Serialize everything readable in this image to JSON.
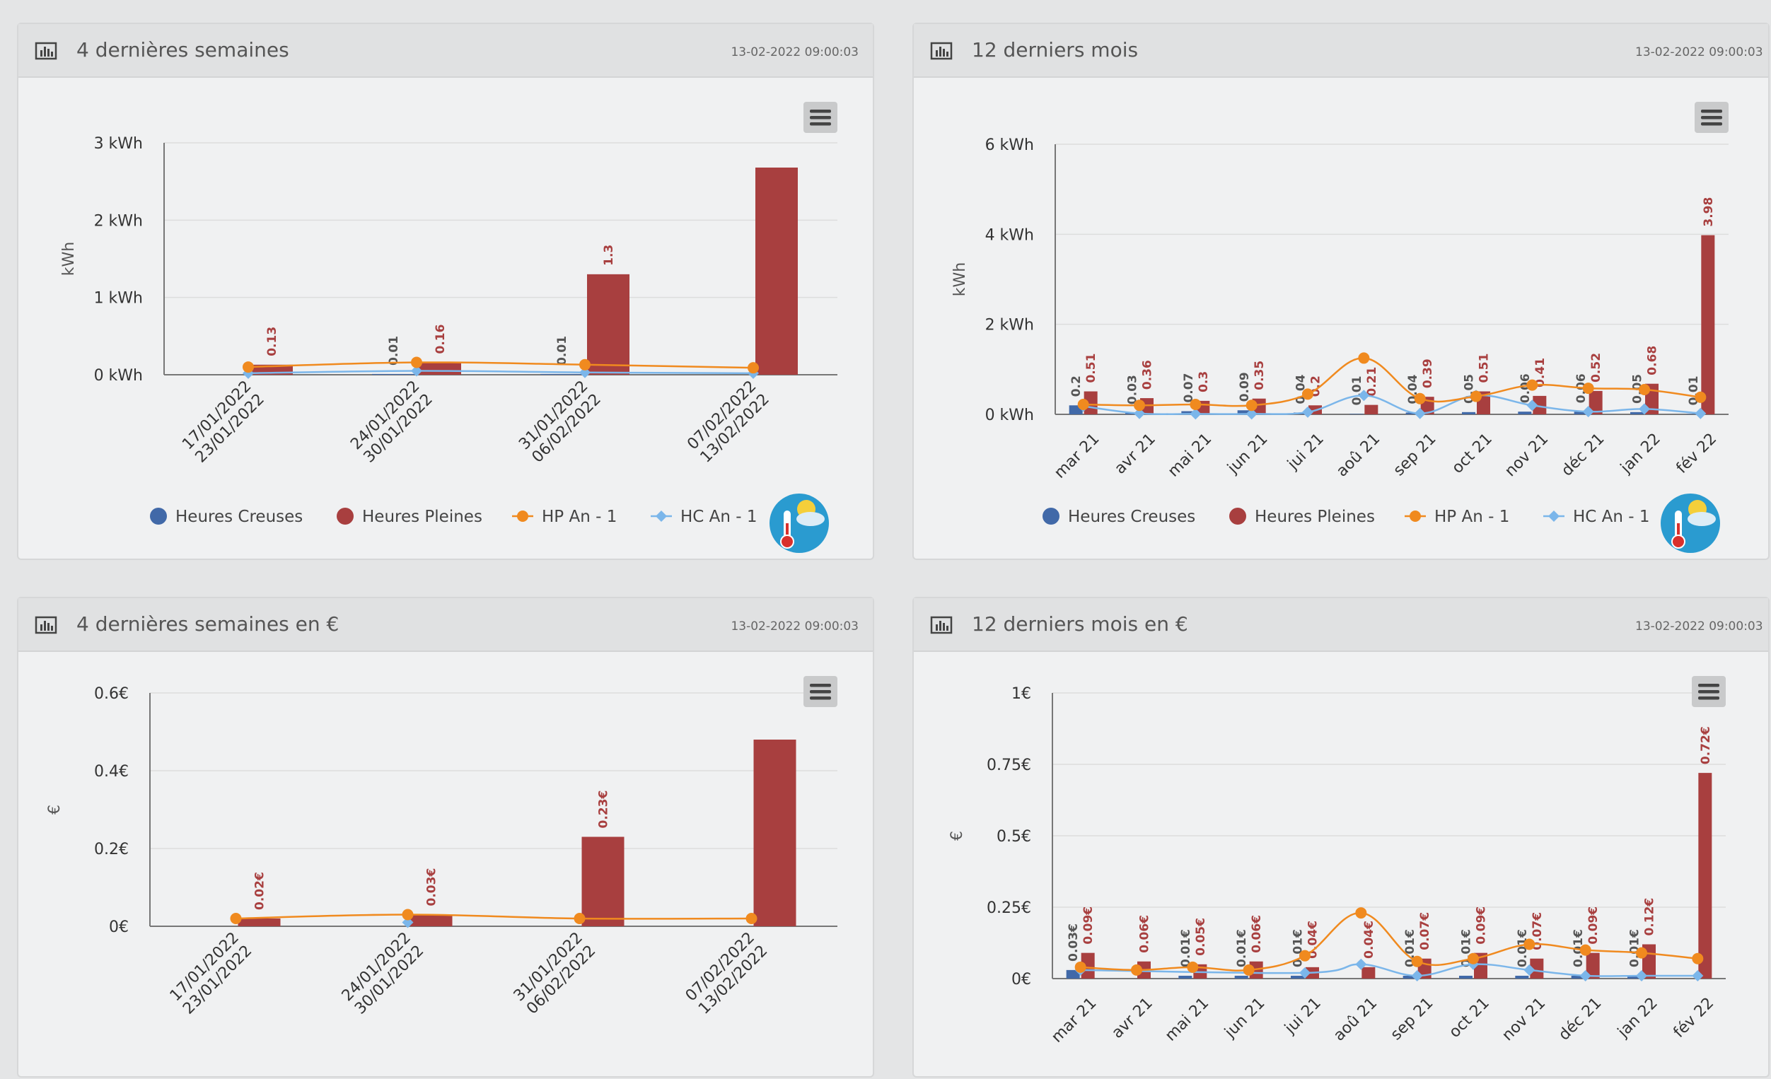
{
  "colors": {
    "hc": "#4169a8",
    "hp": "#a83f3f",
    "hp_prev": "#f08a1f",
    "hc_prev": "#7bb6ea",
    "grid": "#dddddd",
    "axis": "#555555",
    "label_gray": "#555555"
  },
  "panels": [
    {
      "title": "4 dernières semaines",
      "date": "13-02-2022 09:00:03",
      "icon": "bar-chart-icon",
      "menu_icon": "hamburger-menu-icon",
      "weather_icon": "weather-thermometer-icon",
      "chart_data": {
        "type": "bar",
        "ylabel": "kWh",
        "ylim": [
          0,
          3
        ],
        "yticks": [
          0,
          1,
          2,
          3
        ],
        "ytick_labels": [
          "0 kWh",
          "1 kWh",
          "2 kWh",
          "3 kWh"
        ],
        "categories": [
          "17/01/2022\n23/01/2022",
          "24/01/2022\n30/01/2022",
          "31/01/2022\n06/02/2022",
          "07/02/2022\n13/02/2022"
        ],
        "series": [
          {
            "name": "Heures Creuses",
            "kind": "bar",
            "values": [
              0,
              0.01,
              0.01,
              0
            ],
            "labels": [
              "",
              "0.01",
              "0.01",
              ""
            ]
          },
          {
            "name": "Heures Pleines",
            "kind": "bar",
            "values": [
              0.13,
              0.16,
              1.3,
              2.68
            ],
            "labels": [
              "0.13",
              "0.16",
              "1.3",
              ""
            ]
          },
          {
            "name": "HP An - 1",
            "kind": "line",
            "values": [
              0.1,
              0.16,
              0.13,
              0.09
            ]
          },
          {
            "name": "HC An - 1",
            "kind": "line",
            "values": [
              0.02,
              0.05,
              0.03,
              0.02
            ]
          }
        ],
        "grid": true,
        "legend_position": "bottom"
      }
    },
    {
      "title": "12 derniers mois",
      "date": "13-02-2022 09:00:03",
      "icon": "bar-chart-icon",
      "menu_icon": "hamburger-menu-icon",
      "weather_icon": "weather-thermometer-icon",
      "chart_data": {
        "type": "bar",
        "ylabel": "kWh",
        "ylim": [
          0,
          6
        ],
        "yticks": [
          0,
          2,
          4,
          6
        ],
        "ytick_labels": [
          "0 kWh",
          "2 kWh",
          "4 kWh",
          "6 kWh"
        ],
        "categories": [
          "mar 21",
          "avr 21",
          "mai 21",
          "jun 21",
          "jui 21",
          "aoû 21",
          "sep 21",
          "oct 21",
          "nov 21",
          "déc 21",
          "jan 22",
          "fév 22"
        ],
        "series": [
          {
            "name": "Heures Creuses",
            "kind": "bar",
            "values": [
              0.2,
              0.03,
              0.07,
              0.09,
              0.04,
              0.01,
              0.04,
              0.05,
              0.06,
              0.06,
              0.05,
              0.01
            ],
            "labels": [
              "0.2",
              "0.03",
              "0.07",
              "0.09",
              "0.04",
              "0.01",
              "0.04",
              "0.05",
              "0.06",
              "0.06",
              "0.05",
              "0.01"
            ]
          },
          {
            "name": "Heures Pleines",
            "kind": "bar",
            "values": [
              0.51,
              0.36,
              0.3,
              0.35,
              0.2,
              0.21,
              0.39,
              0.51,
              0.41,
              0.52,
              0.68,
              3.98
            ],
            "labels": [
              "0.51",
              "0.36",
              "0.3",
              "0.35",
              "0.2",
              "0.21",
              "0.39",
              "0.51",
              "0.41",
              "0.52",
              "0.68",
              "3.98"
            ]
          },
          {
            "name": "HP An - 1",
            "kind": "line",
            "values": [
              0.22,
              0.2,
              0.22,
              0.2,
              0.45,
              1.25,
              0.35,
              0.4,
              0.65,
              0.58,
              0.55,
              0.38
            ]
          },
          {
            "name": "HC An - 1",
            "kind": "line",
            "values": [
              0.18,
              0.02,
              0.01,
              0.01,
              0.05,
              0.42,
              0.02,
              0.42,
              0.2,
              0.06,
              0.12,
              0.02
            ]
          }
        ],
        "grid": true,
        "legend_position": "bottom"
      }
    },
    {
      "title": "4 dernières semaines en €",
      "date": "13-02-2022 09:00:03",
      "icon": "bar-chart-icon",
      "menu_icon": "hamburger-menu-icon",
      "weather_icon": "",
      "chart_data": {
        "type": "bar",
        "ylabel": "€",
        "ylim": [
          0,
          0.6
        ],
        "yticks": [
          0,
          0.2,
          0.4,
          0.6
        ],
        "ytick_labels": [
          "0€",
          "0.2€",
          "0.4€",
          "0.6€"
        ],
        "categories": [
          "17/01/2022\n23/01/2022",
          "24/01/2022\n30/01/2022",
          "31/01/2022\n06/02/2022",
          "07/02/2022\n13/02/2022"
        ],
        "series": [
          {
            "name": "Heures Creuses",
            "kind": "bar",
            "values": [
              0,
              0,
              0,
              0
            ],
            "labels": [
              "",
              "",
              "",
              ""
            ]
          },
          {
            "name": "Heures Pleines",
            "kind": "bar",
            "values": [
              0.02,
              0.03,
              0.23,
              0.48
            ],
            "labels": [
              "0.02€",
              "0.03€",
              "0.23€",
              ""
            ]
          },
          {
            "name": "HP An - 1",
            "kind": "line",
            "values": [
              0.02,
              0.03,
              0.02,
              0.02
            ]
          },
          {
            "name": "HC An - 1",
            "kind": "line",
            "values": [
              null,
              0.01,
              null,
              null
            ]
          }
        ],
        "grid": true
      }
    },
    {
      "title": "12 derniers mois en €",
      "date": "13-02-2022 09:00:03",
      "icon": "bar-chart-icon",
      "menu_icon": "hamburger-menu-icon",
      "weather_icon": "",
      "chart_data": {
        "type": "bar",
        "ylabel": "€",
        "ylim": [
          0,
          1
        ],
        "yticks": [
          0,
          0.25,
          0.5,
          0.75,
          1
        ],
        "ytick_labels": [
          "0€",
          "0.25€",
          "0.5€",
          "0.75€",
          "1€"
        ],
        "categories": [
          "mar 21",
          "avr 21",
          "mai 21",
          "jun 21",
          "jui 21",
          "aoû 21",
          "sep 21",
          "oct 21",
          "nov 21",
          "déc 21",
          "jan 22",
          "fév 22"
        ],
        "series": [
          {
            "name": "Heures Creuses",
            "kind": "bar",
            "values": [
              0.03,
              0,
              0.01,
              0.01,
              0.01,
              0,
              0.01,
              0.01,
              0.01,
              0.01,
              0.01,
              0
            ],
            "labels": [
              "0.03€",
              "",
              "0.01€",
              "0.01€",
              "0.01€",
              "",
              "0.01€",
              "0.01€",
              "0.01€",
              "0.01€",
              "0.01€",
              ""
            ]
          },
          {
            "name": "Heures Pleines",
            "kind": "bar",
            "values": [
              0.09,
              0.06,
              0.05,
              0.06,
              0.04,
              0.04,
              0.07,
              0.09,
              0.07,
              0.09,
              0.12,
              0.72
            ],
            "labels": [
              "0.09€",
              "0.06€",
              "0.05€",
              "0.06€",
              "0.04€",
              "0.04€",
              "0.07€",
              "0.09€",
              "0.07€",
              "0.09€",
              "0.12€",
              "0.72€"
            ]
          },
          {
            "name": "HP An - 1",
            "kind": "line",
            "values": [
              0.04,
              0.03,
              0.04,
              0.03,
              0.08,
              0.23,
              0.06,
              0.07,
              0.12,
              0.1,
              0.09,
              0.07
            ]
          },
          {
            "name": "HC An - 1",
            "kind": "line",
            "values": [
              0.03,
              null,
              null,
              null,
              0.02,
              0.05,
              0.01,
              0.05,
              0.03,
              0.01,
              0.01,
              0.01
            ]
          }
        ],
        "grid": true
      }
    }
  ]
}
